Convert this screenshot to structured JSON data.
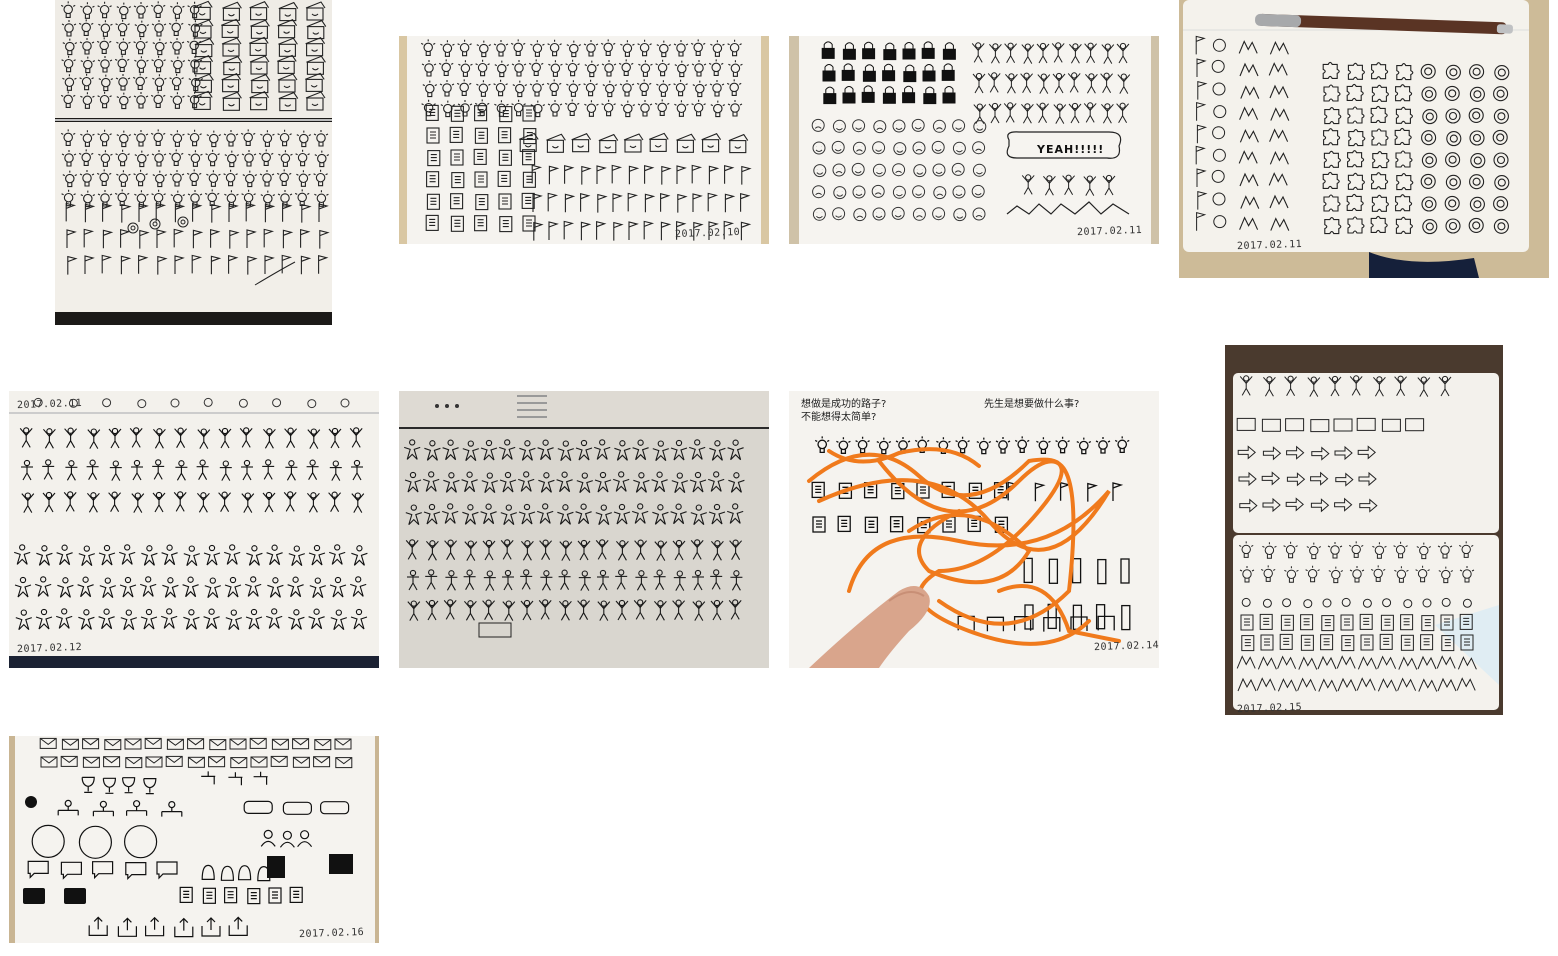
{
  "gallery": {
    "background": "#ffffff",
    "paper_color": "#f4f2ee",
    "ink_color": "#1a1a1a",
    "marker_color": "#f07a1c",
    "photos": [
      {
        "id": "p1",
        "subject": "lightbulbs-boxes-flags",
        "date": ""
      },
      {
        "id": "p2",
        "subject": "lightbulbs-documents-flags",
        "date": "2017.02.10"
      },
      {
        "id": "p3",
        "subject": "locks-people-faces",
        "date": "2017.02.11",
        "caption": "YEAH!!!!!"
      },
      {
        "id": "p4",
        "subject": "puzzle-lifebuoys-pen",
        "date": "2017.02.11"
      },
      {
        "id": "p5",
        "subject": "stick-figures",
        "date": "2017.02.12",
        "top_date": "2017.02.11"
      },
      {
        "id": "p6",
        "subject": "stick-figures-dim",
        "date": ""
      },
      {
        "id": "p7",
        "subject": "orange-scribbles-hand",
        "date": "2017.02.14",
        "notes": [
          "想做是成功的路子?",
          "不能想得太简单?",
          "先生是想要做什么事?"
        ]
      },
      {
        "id": "p8",
        "subject": "mixed-icons-portrait",
        "date": "2017.02.15"
      },
      {
        "id": "p9",
        "subject": "envelopes-trophies-icons",
        "date": "2017.02.16"
      }
    ]
  }
}
